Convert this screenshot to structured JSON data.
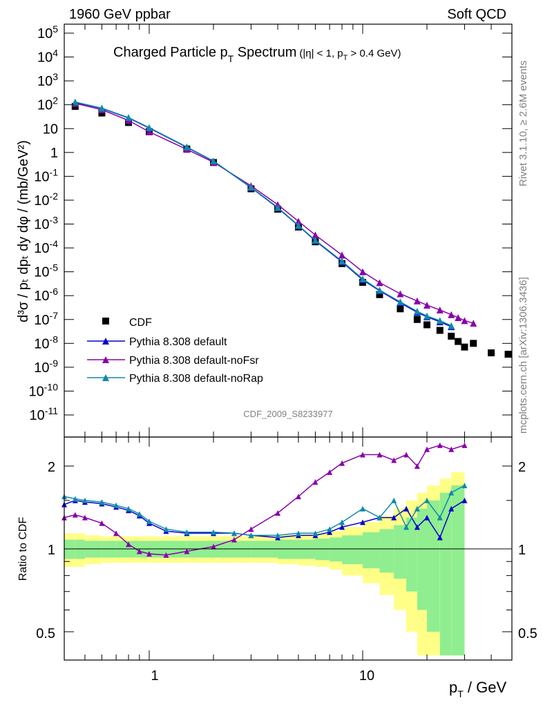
{
  "header": {
    "left": "1960 GeV ppbar",
    "right": "Soft QCD"
  },
  "side_text": {
    "rivet": "Rivet 3.1.10, ≥ 2.6M events",
    "source": "mcplots.cern.ch [arXiv:1306.3436]"
  },
  "analysis_label": "CDF_2009_S8233977",
  "chart_data": [
    {
      "type": "scatter",
      "panel": "main",
      "title_main": "Charged Particle p",
      "title_sub": "T",
      "title_main_end": " Spectrum",
      "title_cut": "(|η| < 1, p",
      "title_cut_sub": "T",
      "title_cut_end": " > 0.4 GeV)",
      "ylabel": "d³σ / pₜ dpₜ dy dφ / (mb/GeV²)",
      "xlabel": "p_T / GeV",
      "x_scale": "log",
      "y_scale": "log",
      "xlim": [
        0.4,
        50
      ],
      "ylim": [
        1e-12,
        300000.0
      ],
      "y_ticks": [
        "10^5",
        "10^4",
        "10^3",
        "10^2",
        "10",
        "1",
        "10^-1",
        "10^-2",
        "10^-3",
        "10^-4",
        "10^-5",
        "10^-6",
        "10^-7",
        "10^-8",
        "10^-9",
        "10^-10",
        "10^-11"
      ],
      "legend_position": "bottom-left",
      "series": [
        {
          "name": "CDF",
          "color": "#000000",
          "marker": "square",
          "x": [
            0.45,
            0.6,
            0.8,
            1.0,
            1.5,
            2.0,
            3.0,
            4.0,
            5.0,
            6.0,
            8.0,
            10.0,
            12.0,
            15.0,
            18.0,
            20.0,
            23.0,
            26.0,
            28.0,
            30.0,
            33.0,
            40.0,
            48.0
          ],
          "y": [
            85,
            45,
            18,
            7.5,
            1.4,
            0.38,
            0.03,
            0.0042,
            0.00075,
            0.00018,
            2.2e-05,
            3.6e-06,
            1.1e-06,
            2.8e-07,
            1e-07,
            6e-08,
            3.5e-08,
            2e-08,
            1.2e-08,
            7e-09,
            1e-08,
            4e-09,
            3.5e-09
          ]
        },
        {
          "name": "Pythia 8.308 default",
          "color": "#0000cc",
          "marker": "triangle",
          "x": [
            0.45,
            0.6,
            0.8,
            1.0,
            1.5,
            2.0,
            3.0,
            4.0,
            5.0,
            6.0,
            8.0,
            10.0,
            12.0,
            15.0,
            18.0,
            20.0,
            23.0,
            26.0
          ],
          "y": [
            125,
            70,
            28,
            10.5,
            1.65,
            0.43,
            0.034,
            0.0048,
            0.00085,
            0.0002,
            2.6e-05,
            4.6e-06,
            1.6e-06,
            5e-07,
            2e-07,
            1.3e-07,
            8e-08,
            5e-08
          ]
        },
        {
          "name": "Pythia 8.308 default-noFsr",
          "color": "#8800aa",
          "marker": "triangle",
          "x": [
            0.45,
            0.6,
            0.8,
            1.0,
            1.5,
            2.0,
            3.0,
            4.0,
            5.0,
            6.0,
            8.0,
            10.0,
            12.0,
            15.0,
            18.0,
            20.0,
            23.0,
            26.0,
            28.0,
            30.0,
            33.0
          ],
          "y": [
            115,
            62,
            22,
            7.3,
            1.35,
            0.39,
            0.04,
            0.0065,
            0.0013,
            0.00035,
            5e-05,
            1e-05,
            3.5e-06,
            1.2e-06,
            6e-07,
            4e-07,
            2.5e-07,
            1.6e-07,
            1.2e-07,
            9e-08,
            7e-08
          ]
        },
        {
          "name": "Pythia 8.308 default-noRap",
          "color": "#1188aa",
          "marker": "triangle",
          "x": [
            0.45,
            0.6,
            0.8,
            1.0,
            1.5,
            2.0,
            3.0,
            4.0,
            5.0,
            6.0,
            8.0,
            10.0,
            12.0,
            15.0,
            18.0,
            20.0,
            23.0,
            26.0
          ],
          "y": [
            130,
            72,
            29,
            11,
            1.7,
            0.44,
            0.035,
            0.005,
            0.00088,
            0.00021,
            2.8e-05,
            5e-06,
            1.7e-06,
            5.5e-07,
            2.2e-07,
            1.4e-07,
            9e-08,
            5.5e-08
          ]
        }
      ]
    },
    {
      "type": "line",
      "panel": "ratio",
      "ylabel": "Ratio to CDF",
      "y_scale": "log",
      "ylim": [
        0.4,
        2.4
      ],
      "y_ticks": [
        "0.5",
        "1",
        "2"
      ],
      "x": [
        0.4,
        0.45,
        0.5,
        0.6,
        0.7,
        0.8,
        0.9,
        1.0,
        1.2,
        1.5,
        2.0,
        2.5,
        3.0,
        4.0,
        5.0,
        6.0,
        7.0,
        8.0,
        10.0,
        12.0,
        14.0,
        16.0,
        18.0,
        20.0,
        23.0,
        26.0,
        30.0
      ],
      "series": [
        {
          "name": "Pythia 8.308 default",
          "color": "#0000cc",
          "values": [
            1.45,
            1.5,
            1.48,
            1.46,
            1.42,
            1.38,
            1.32,
            1.24,
            1.16,
            1.14,
            1.14,
            1.14,
            1.12,
            1.1,
            1.12,
            1.12,
            1.15,
            1.2,
            1.25,
            1.3,
            1.3,
            1.4,
            1.2,
            1.3,
            1.1,
            1.4,
            1.5
          ]
        },
        {
          "name": "Pythia 8.308 default-noFsr",
          "color": "#8800aa",
          "values": [
            1.3,
            1.33,
            1.3,
            1.24,
            1.14,
            1.04,
            0.98,
            0.96,
            0.95,
            0.98,
            1.02,
            1.08,
            1.18,
            1.35,
            1.55,
            1.75,
            1.9,
            2.05,
            2.2,
            2.2,
            2.1,
            2.2,
            2.0,
            2.3,
            2.4,
            2.3,
            2.4
          ]
        },
        {
          "name": "Pythia 8.308 default-noRap",
          "color": "#1188aa",
          "values": [
            1.55,
            1.52,
            1.5,
            1.48,
            1.44,
            1.4,
            1.34,
            1.26,
            1.18,
            1.15,
            1.15,
            1.14,
            1.12,
            1.12,
            1.14,
            1.14,
            1.18,
            1.25,
            1.4,
            1.3,
            1.5,
            1.2,
            1.4,
            1.5,
            1.3,
            1.6,
            1.7
          ]
        }
      ],
      "band_inner_color": "#90ee90",
      "band_outer_color": "#ffff88",
      "band_inner": [
        0.08,
        0.08,
        0.07,
        0.07,
        0.07,
        0.07,
        0.07,
        0.07,
        0.07,
        0.07,
        0.07,
        0.07,
        0.07,
        0.08,
        0.08,
        0.09,
        0.1,
        0.12,
        0.15,
        0.18,
        0.22,
        0.3,
        0.4,
        0.5,
        0.6,
        0.7,
        0.8
      ],
      "band_outer": [
        0.14,
        0.14,
        0.12,
        0.11,
        0.11,
        0.11,
        0.11,
        0.11,
        0.11,
        0.11,
        0.11,
        0.11,
        0.11,
        0.12,
        0.13,
        0.14,
        0.16,
        0.2,
        0.25,
        0.32,
        0.4,
        0.5,
        0.6,
        0.7,
        0.8,
        0.9,
        1.0
      ]
    }
  ]
}
